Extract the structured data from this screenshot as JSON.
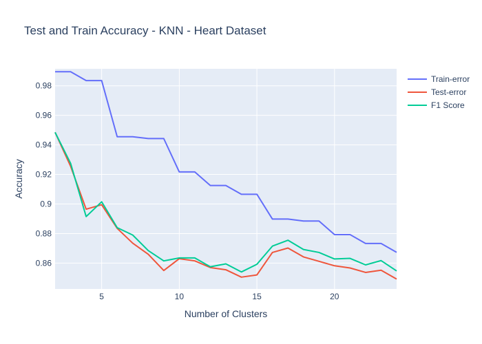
{
  "chart_data": {
    "type": "line",
    "title": "Test and Train Accuracy - KNN - Heart Dataset",
    "xlabel": "Number of Clusters",
    "ylabel": "Accuracy",
    "xlim": [
      2,
      24
    ],
    "ylim": [
      0.8425,
      0.9915
    ],
    "x_ticks": [
      5,
      10,
      15,
      20
    ],
    "x_tick_labels": [
      "5",
      "10",
      "15",
      "20"
    ],
    "y_ticks": [
      0.86,
      0.88,
      0.9,
      0.92,
      0.94,
      0.96,
      0.98
    ],
    "y_tick_labels": [
      "0.86",
      "0.88",
      "0.9",
      "0.92",
      "0.94",
      "0.96",
      "0.98"
    ],
    "grid": true,
    "legend_position": "top-right",
    "background": "#e5ecf6",
    "x": [
      2,
      3,
      4,
      5,
      6,
      7,
      8,
      9,
      10,
      11,
      12,
      13,
      14,
      15,
      16,
      17,
      18,
      19,
      20,
      21,
      22,
      23,
      24
    ],
    "series": [
      {
        "name": "Train-error",
        "color": "#636efa",
        "values": [
          0.9895,
          0.9895,
          0.9835,
          0.9835,
          0.9455,
          0.9455,
          0.9443,
          0.9443,
          0.9217,
          0.9217,
          0.9125,
          0.9125,
          0.9066,
          0.9066,
          0.8898,
          0.8898,
          0.8885,
          0.8885,
          0.8793,
          0.8793,
          0.8733,
          0.8733,
          0.8673
        ]
      },
      {
        "name": "Test-error",
        "color": "#ef553b",
        "values": [
          0.9485,
          0.9255,
          0.8965,
          0.8995,
          0.8835,
          0.8735,
          0.866,
          0.855,
          0.863,
          0.8615,
          0.857,
          0.8555,
          0.8505,
          0.852,
          0.8672,
          0.8702,
          0.8642,
          0.8612,
          0.8582,
          0.8567,
          0.8537,
          0.8552,
          0.8492
        ]
      },
      {
        "name": "F1 Score",
        "color": "#00cc96",
        "values": [
          0.9485,
          0.9275,
          0.8915,
          0.9015,
          0.884,
          0.879,
          0.8685,
          0.8615,
          0.8635,
          0.8635,
          0.8575,
          0.8595,
          0.854,
          0.8592,
          0.8715,
          0.8755,
          0.8692,
          0.8672,
          0.8628,
          0.8632,
          0.8588,
          0.8617,
          0.8547
        ]
      }
    ]
  }
}
